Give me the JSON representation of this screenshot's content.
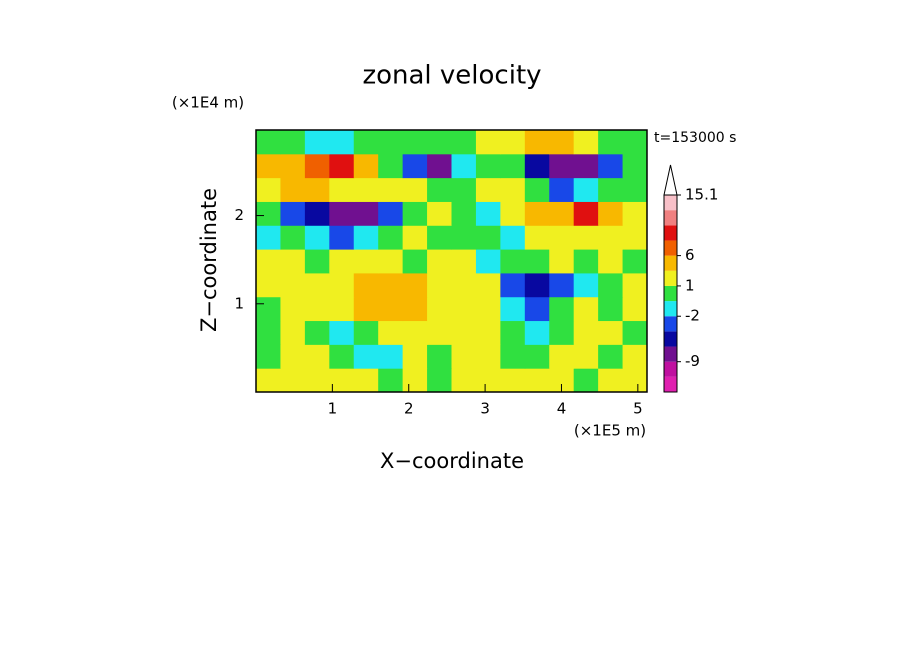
{
  "chart_data": {
    "type": "contour",
    "title": "zonal velocity",
    "y_unit_label": "(×1E4 m)",
    "x_unit_label": "(×1E5 m)",
    "time_label": "t=153000 s",
    "x_label": "X−coordinate",
    "y_label": "Z−coordinate",
    "xlim": [
      0,
      5.12
    ],
    "ylim": [
      0,
      2.97
    ],
    "xticks": [
      1,
      2,
      3,
      4,
      5
    ],
    "yticks": [
      1,
      2
    ],
    "x": [
      0.16,
      0.48,
      0.8,
      1.12,
      1.44,
      1.76,
      2.08,
      2.4,
      2.72,
      3.04,
      3.36,
      3.68,
      4.0,
      4.32,
      4.64,
      4.96
    ],
    "y": [
      0.135,
      0.405,
      0.675,
      0.945,
      1.215,
      1.485,
      1.755,
      2.025,
      2.295,
      2.565,
      2.835
    ],
    "z": [
      [
        1,
        2,
        2,
        1,
        1,
        0,
        1,
        0,
        1,
        1,
        2,
        2,
        1,
        0,
        1,
        2
      ],
      [
        0,
        1,
        2,
        0,
        -1.5,
        -1.5,
        1,
        0,
        2,
        1,
        0,
        0,
        2,
        1,
        0,
        1
      ],
      [
        0,
        1,
        0,
        -1.5,
        0,
        1,
        1,
        1,
        2,
        1,
        0,
        -1.5,
        0,
        1,
        1,
        0
      ],
      [
        0,
        1,
        1,
        2,
        3,
        3,
        3,
        2,
        1,
        1,
        -1.5,
        -2.5,
        0,
        1,
        0,
        1
      ],
      [
        2,
        1,
        1,
        2,
        4,
        4,
        4,
        2,
        1,
        2,
        -3,
        -4,
        -3,
        -1.5,
        0,
        1
      ],
      [
        1,
        2,
        0,
        1,
        1,
        1,
        0,
        1,
        1,
        -1.5,
        0,
        0,
        1,
        0,
        1,
        0
      ],
      [
        -1.5,
        0,
        -1.5,
        -2.5,
        -1.5,
        0,
        1,
        0,
        0,
        0,
        -1.5,
        1,
        2,
        2,
        2,
        1
      ],
      [
        0,
        -2.5,
        -4,
        -7,
        -7,
        -2.5,
        0,
        1,
        0,
        -1.5,
        1,
        4,
        5,
        9,
        5,
        2
      ],
      [
        2,
        4,
        4,
        2,
        1,
        2,
        2,
        0,
        0,
        1,
        1,
        0,
        -2.5,
        -1.5,
        0,
        0
      ],
      [
        4,
        5,
        7,
        9,
        4,
        0,
        -2.5,
        -7,
        -1.5,
        0,
        0,
        -4,
        -7,
        -7,
        -2.5,
        0
      ],
      [
        0,
        0,
        -1.5,
        -1.5,
        0,
        0,
        0,
        0,
        0,
        2,
        2,
        4,
        4,
        2,
        0,
        0
      ]
    ],
    "levels": [
      -15,
      -12,
      -9,
      -6,
      -3,
      -2,
      -1,
      1,
      3,
      6,
      8,
      10,
      12,
      15.1
    ],
    "colors": [
      "#e020b0",
      "#c010a0",
      "#701090",
      "#0808a0",
      "#1848e8",
      "#20e8f0",
      "#30e040",
      "#f0f020",
      "#f8b800",
      "#f06000",
      "#e01010",
      "#f08080",
      "#f8c0c8"
    ],
    "colorbar_ticks": [
      15.1,
      6,
      1,
      -2,
      -9
    ]
  }
}
